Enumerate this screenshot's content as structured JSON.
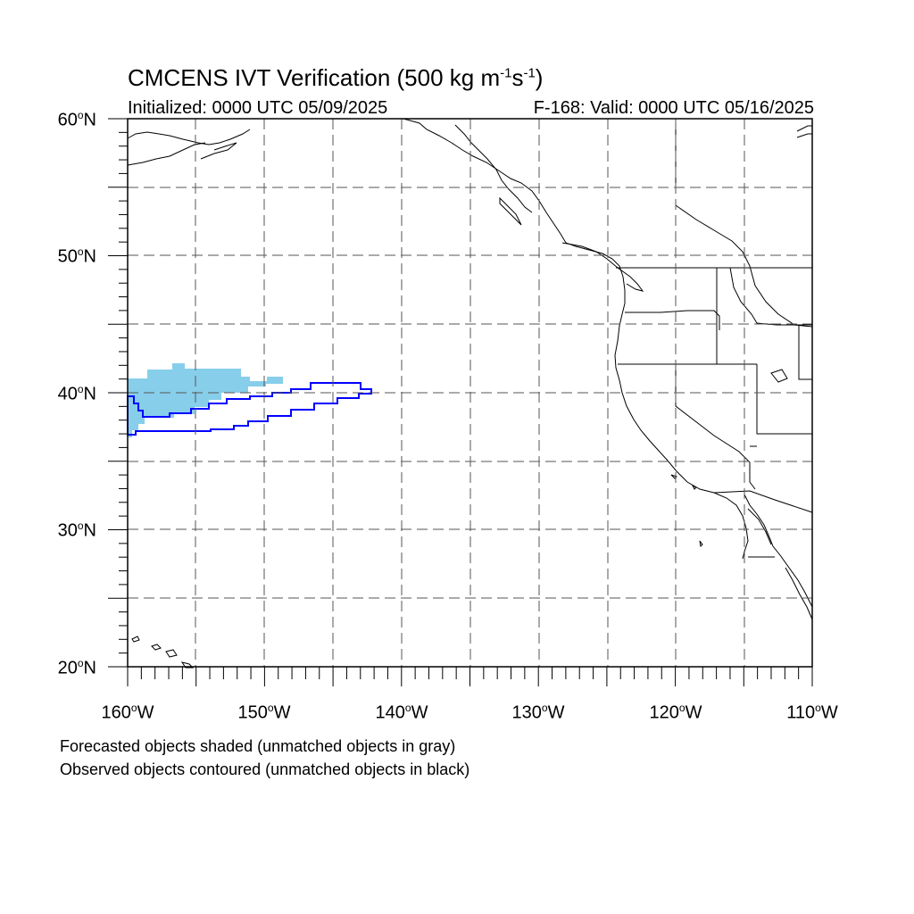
{
  "header": {
    "title_main": "CMCENS IVT Verification (500 kg m",
    "title_exp1": "-1",
    "title_mid": "s",
    "title_exp2": "-1",
    "title_end": ")",
    "initialized": "Initialized: 0000 UTC 05/09/2025",
    "valid": "F-168: Valid: 0000 UTC 05/16/2025"
  },
  "map": {
    "extent": {
      "lon_min": -160,
      "lon_max": -110,
      "lat_min": 20,
      "lat_max": 60
    },
    "grid_lines": "dashed",
    "lat_ticks": [
      "60",
      "50",
      "40",
      "30",
      "20"
    ],
    "lat_suffix": "N",
    "lon_ticks": [
      "160",
      "150",
      "140",
      "130",
      "120",
      "110"
    ],
    "lon_suffix": "W",
    "degree_symbol": "o",
    "colors": {
      "forecast_shading": "#87ceeb",
      "observed_contour": "#0000ff",
      "coastline": "#000000",
      "grid": "#555555"
    }
  },
  "legend": {
    "line1": "Forecasted objects shaded (unmatched objects in gray)",
    "line2": "Observed objects contoured (unmatched objects in black)"
  }
}
